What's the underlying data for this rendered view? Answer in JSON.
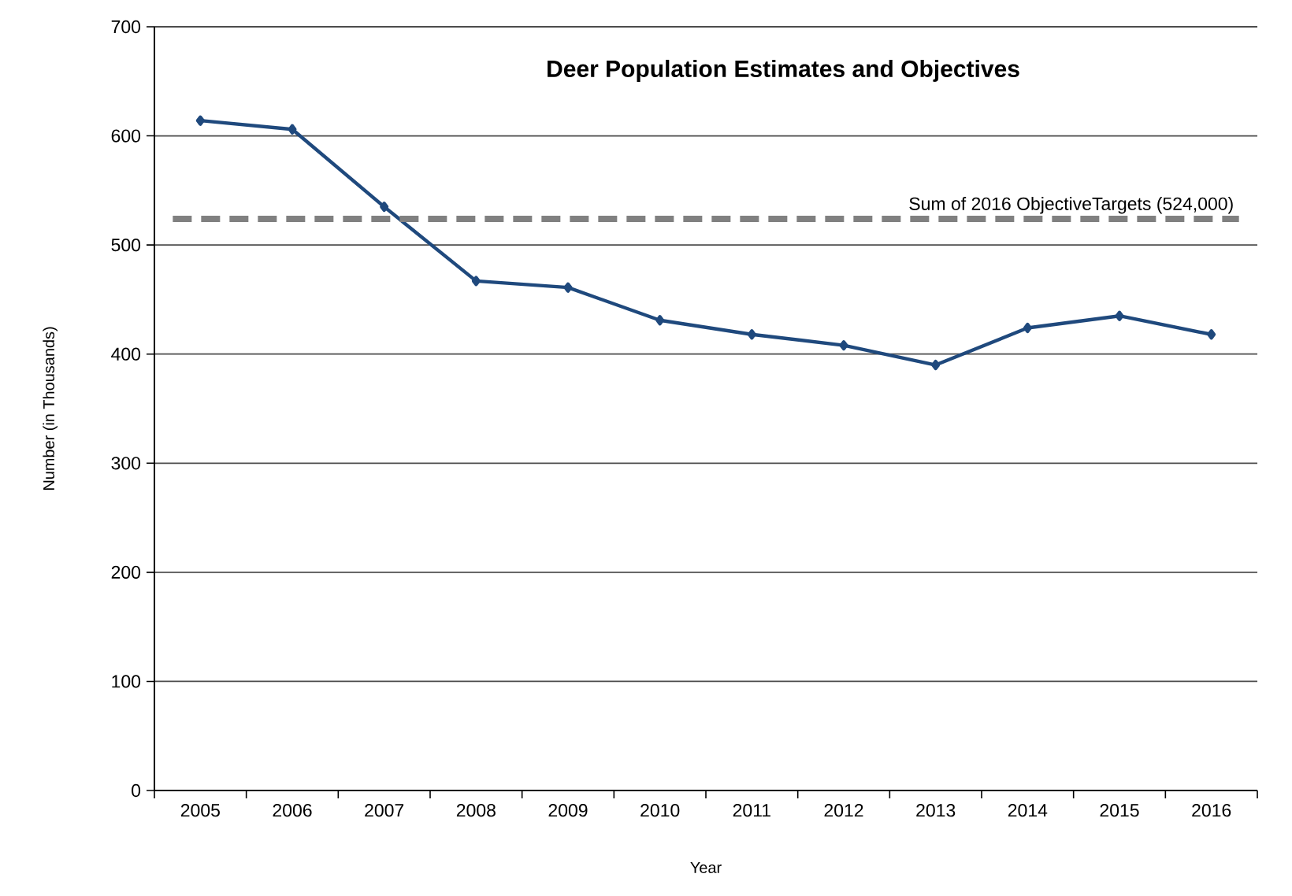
{
  "chart_data": {
    "type": "line",
    "title": "Deer Population Estimates and Objectives",
    "xlabel": "Year",
    "ylabel": "Number (in Thousands)",
    "categories": [
      "2005",
      "2006",
      "2007",
      "2008",
      "2009",
      "2010",
      "2011",
      "2012",
      "2013",
      "2014",
      "2015",
      "2016"
    ],
    "series": [
      {
        "color": "#1f497d",
        "values": [
          614,
          606,
          535,
          467,
          461,
          431,
          418,
          408,
          390,
          424,
          435,
          418
        ]
      }
    ],
    "ylim": [
      0,
      700
    ],
    "yticks": [
      0,
      100,
      200,
      300,
      400,
      500,
      600,
      700
    ],
    "grid": "y",
    "marker": "diamond",
    "ref_lines": [
      {
        "axis": "y",
        "value": 524,
        "label": "Sum of  2016 ObjectiveTargets (524,000)",
        "color": "#808080",
        "line_style": "dashed"
      }
    ]
  }
}
